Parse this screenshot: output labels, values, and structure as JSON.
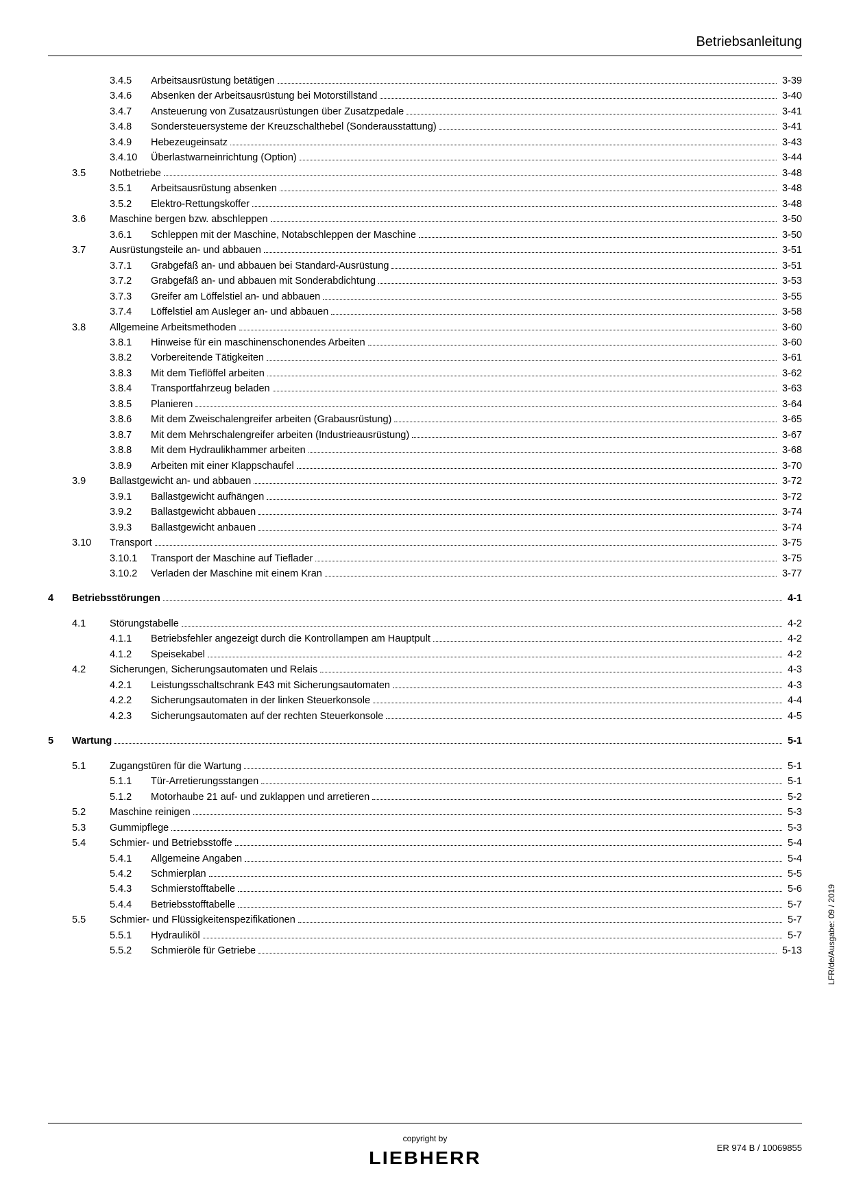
{
  "header": {
    "title": "Betriebsanleitung"
  },
  "toc": [
    {
      "type": "sub",
      "num": "3.4.5",
      "title": "Arbeitsausrüstung betätigen",
      "page": "3-39"
    },
    {
      "type": "sub",
      "num": "3.4.6",
      "title": "Absenken der Arbeitsausrüstung bei Motorstillstand",
      "page": "3-40"
    },
    {
      "type": "sub",
      "num": "3.4.7",
      "title": "Ansteuerung von Zusatzausrüstungen über Zusatzpedale",
      "page": "3-41"
    },
    {
      "type": "sub",
      "num": "3.4.8",
      "title": "Sondersteuersysteme der Kreuzschalthebel (Sonderausstattung)",
      "page": "3-41"
    },
    {
      "type": "sub",
      "num": "3.4.9",
      "title": "Hebezeugeinsatz",
      "page": "3-43"
    },
    {
      "type": "sub",
      "num": "3.4.10",
      "title": "Überlastwarneinrichtung (Option)",
      "page": "3-44"
    },
    {
      "type": "sec",
      "num": "3.5",
      "title": "Notbetriebe",
      "page": "3-48"
    },
    {
      "type": "sub",
      "num": "3.5.1",
      "title": "Arbeitsausrüstung absenken",
      "page": "3-48"
    },
    {
      "type": "sub",
      "num": "3.5.2",
      "title": "Elektro-Rettungskoffer",
      "page": "3-48"
    },
    {
      "type": "sec",
      "num": "3.6",
      "title": "Maschine bergen bzw. abschleppen",
      "page": "3-50"
    },
    {
      "type": "sub",
      "num": "3.6.1",
      "title": "Schleppen mit der Maschine, Notabschleppen der Maschine",
      "page": "3-50"
    },
    {
      "type": "sec",
      "num": "3.7",
      "title": "Ausrüstungsteile an- und abbauen",
      "page": "3-51"
    },
    {
      "type": "sub",
      "num": "3.7.1",
      "title": "Grabgefäß an- und abbauen bei Standard-Ausrüstung",
      "page": "3-51"
    },
    {
      "type": "sub",
      "num": "3.7.2",
      "title": "Grabgefäß an- und abbauen mit Sonderabdichtung",
      "page": "3-53"
    },
    {
      "type": "sub",
      "num": "3.7.3",
      "title": "Greifer am Löffelstiel an- und abbauen",
      "page": "3-55"
    },
    {
      "type": "sub",
      "num": "3.7.4",
      "title": "Löffelstiel am Ausleger an- und abbauen",
      "page": "3-58"
    },
    {
      "type": "sec",
      "num": "3.8",
      "title": "Allgemeine Arbeitsmethoden",
      "page": "3-60"
    },
    {
      "type": "sub",
      "num": "3.8.1",
      "title": "Hinweise für ein maschinenschonendes Arbeiten",
      "page": "3-60"
    },
    {
      "type": "sub",
      "num": "3.8.2",
      "title": "Vorbereitende Tätigkeiten",
      "page": "3-61"
    },
    {
      "type": "sub",
      "num": "3.8.3",
      "title": "Mit dem Tieflöffel arbeiten",
      "page": "3-62"
    },
    {
      "type": "sub",
      "num": "3.8.4",
      "title": "Transportfahrzeug beladen",
      "page": "3-63"
    },
    {
      "type": "sub",
      "num": "3.8.5",
      "title": "Planieren",
      "page": "3-64"
    },
    {
      "type": "sub",
      "num": "3.8.6",
      "title": "Mit dem Zweischalengreifer arbeiten (Grabausrüstung)",
      "page": "3-65"
    },
    {
      "type": "sub",
      "num": "3.8.7",
      "title": "Mit dem Mehrschalengreifer arbeiten (Industrieausrüstung)",
      "page": "3-67"
    },
    {
      "type": "sub",
      "num": "3.8.8",
      "title": "Mit dem Hydraulikhammer arbeiten",
      "page": "3-68"
    },
    {
      "type": "sub",
      "num": "3.8.9",
      "title": "Arbeiten mit einer Klappschaufel",
      "page": "3-70"
    },
    {
      "type": "sec",
      "num": "3.9",
      "title": "Ballastgewicht an- und abbauen",
      "page": "3-72"
    },
    {
      "type": "sub",
      "num": "3.9.1",
      "title": "Ballastgewicht aufhängen",
      "page": "3-72"
    },
    {
      "type": "sub",
      "num": "3.9.2",
      "title": "Ballastgewicht abbauen",
      "page": "3-74"
    },
    {
      "type": "sub",
      "num": "3.9.3",
      "title": "Ballastgewicht anbauen",
      "page": "3-74"
    },
    {
      "type": "sec",
      "num": "3.10",
      "title": "Transport",
      "page": "3-75"
    },
    {
      "type": "sub",
      "num": "3.10.1",
      "title": "Transport der Maschine auf Tieflader",
      "page": "3-75"
    },
    {
      "type": "sub",
      "num": "3.10.2",
      "title": "Verladen der Maschine mit einem Kran",
      "page": "3-77"
    },
    {
      "type": "gap"
    },
    {
      "type": "chap",
      "num": "4",
      "title": "Betriebsstörungen",
      "page": "4-1"
    },
    {
      "type": "gap"
    },
    {
      "type": "sec",
      "num": "4.1",
      "title": "Störungstabelle",
      "page": "4-2"
    },
    {
      "type": "sub",
      "num": "4.1.1",
      "title": "Betriebsfehler angezeigt durch die Kontrollampen am Hauptpult",
      "page": "4-2"
    },
    {
      "type": "sub",
      "num": "4.1.2",
      "title": "Speisekabel",
      "page": "4-2"
    },
    {
      "type": "sec",
      "num": "4.2",
      "title": "Sicherungen, Sicherungsautomaten und Relais",
      "page": "4-3"
    },
    {
      "type": "sub",
      "num": "4.2.1",
      "title": "Leistungsschaltschrank E43 mit Sicherungsautomaten",
      "page": "4-3"
    },
    {
      "type": "sub",
      "num": "4.2.2",
      "title": "Sicherungsautomaten in der linken Steuerkonsole",
      "page": "4-4"
    },
    {
      "type": "sub",
      "num": "4.2.3",
      "title": "Sicherungsautomaten auf der rechten Steuerkonsole",
      "page": "4-5"
    },
    {
      "type": "gap"
    },
    {
      "type": "chap",
      "num": "5",
      "title": "Wartung",
      "page": "5-1"
    },
    {
      "type": "gap"
    },
    {
      "type": "sec",
      "num": "5.1",
      "title": "Zugangstüren für die Wartung",
      "page": "5-1"
    },
    {
      "type": "sub",
      "num": "5.1.1",
      "title": "Tür-Arretierungsstangen",
      "page": "5-1"
    },
    {
      "type": "sub",
      "num": "5.1.2",
      "title": "Motorhaube 21 auf- und zuklappen und arretieren",
      "page": "5-2"
    },
    {
      "type": "sec",
      "num": "5.2",
      "title": "Maschine reinigen",
      "page": "5-3"
    },
    {
      "type": "sec",
      "num": "5.3",
      "title": "Gummipflege",
      "page": "5-3"
    },
    {
      "type": "sec",
      "num": "5.4",
      "title": "Schmier- und Betriebsstoffe",
      "page": "5-4"
    },
    {
      "type": "sub",
      "num": "5.4.1",
      "title": "Allgemeine Angaben",
      "page": "5-4"
    },
    {
      "type": "sub",
      "num": "5.4.2",
      "title": "Schmierplan",
      "page": "5-5"
    },
    {
      "type": "sub",
      "num": "5.4.3",
      "title": "Schmierstofftabelle",
      "page": "5-6"
    },
    {
      "type": "sub",
      "num": "5.4.4",
      "title": "Betriebsstofftabelle",
      "page": "5-7"
    },
    {
      "type": "sec",
      "num": "5.5",
      "title": "Schmier- und Flüssigkeitenspezifikationen",
      "page": "5-7"
    },
    {
      "type": "sub",
      "num": "5.5.1",
      "title": "Hydrauliköl",
      "page": "5-7"
    },
    {
      "type": "sub",
      "num": "5.5.2",
      "title": "Schmieröle für Getriebe",
      "page": "5-13"
    }
  ],
  "footer": {
    "copyright": "copyright by",
    "logo": "LIEBHERR",
    "docref": "ER 974 B / 10069855"
  },
  "sidetext": "LFR/de/Ausgabe: 09 / 2019"
}
